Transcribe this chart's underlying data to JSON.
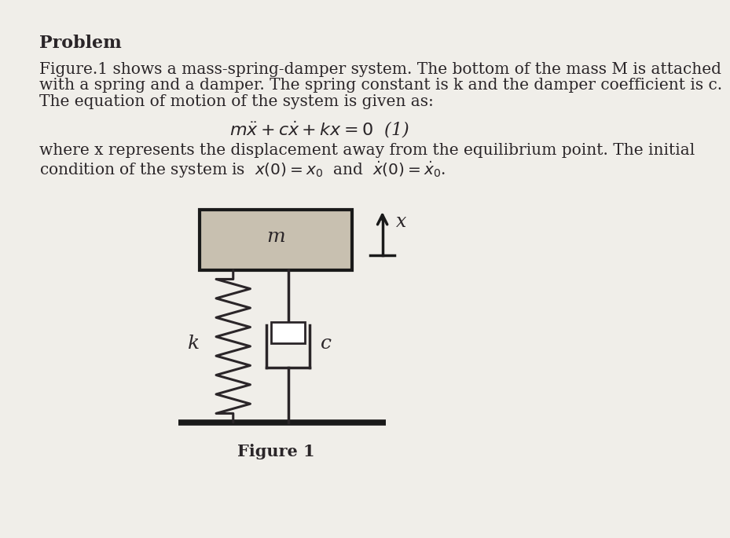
{
  "bg_color": "#f0eee9",
  "text_color": "#2a2528",
  "title": "Problem",
  "para_line1": "Figure.1 shows a mass-spring-damper system. The bottom of the mass M is attached",
  "para_line2": "with a spring and a damper. The spring constant is k and the damper coefficient is c.",
  "para_line3": "The equation of motion of the system is given as:",
  "cond_line1": "where x represents the displacement away from the equilibrium point. The initial",
  "cond_line2": "condition of the system is  $x(0) = x_0$  and  $\\dot{x}(0) = \\dot{x}_0$.",
  "figure_caption": "Figure 1",
  "mass_label": "m",
  "spring_label": "k",
  "damper_label": "c",
  "x_label": "x"
}
